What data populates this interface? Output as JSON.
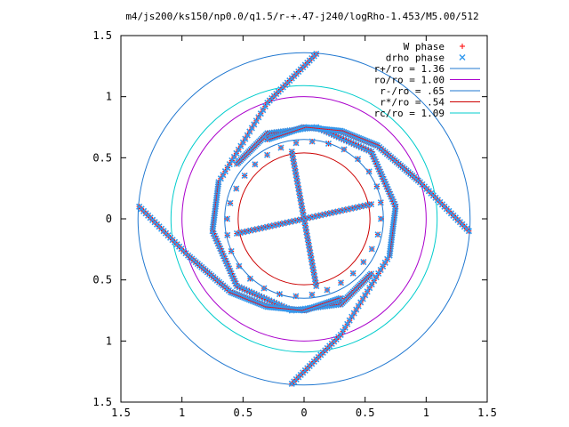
{
  "chart_data": {
    "type": "scatter",
    "title": "m4/js200/ks150/np0.0/q1.5/r-+.47-j240/logRho-1.453/M5.00/512",
    "xlabel": "",
    "ylabel": "",
    "xlim": [
      -1.5,
      1.5
    ],
    "ylim": [
      -1.5,
      1.5
    ],
    "grid": false,
    "legend_position": "top-right",
    "x_ticks": [
      -1.5,
      -1,
      -0.5,
      0,
      0.5,
      1,
      1.5
    ],
    "y_ticks": [
      -1.5,
      -1,
      -0.5,
      0,
      0.5,
      1,
      1.5
    ],
    "x_tick_labels": [
      "1.5",
      "1",
      "0.5",
      "0",
      "0.5",
      "1",
      "1.5"
    ],
    "y_tick_labels": [
      "1.5",
      "1",
      "0.5",
      "0",
      "0.5",
      "1",
      "1.5"
    ],
    "series": [
      {
        "name": "W phase",
        "marker": "plus",
        "color": "#ff0000",
        "arms": [
          {
            "r0": 0.54,
            "theta0": 90,
            "theta1": 400,
            "dr_per_turn": 0.3
          },
          {
            "r0": 0.54,
            "theta0": 270,
            "theta1": 580,
            "dr_per_turn": 0.3
          }
        ],
        "bars": [
          {
            "from": [
              -0.1,
              0.55
            ],
            "to": [
              0.1,
              -0.55
            ]
          },
          {
            "from": [
              -0.55,
              -0.12
            ],
            "to": [
              0.55,
              0.12
            ]
          }
        ],
        "outer_spirals": [
          {
            "points": [
              [
                0.1,
                1.35
              ],
              [
                -0.3,
                0.95
              ],
              [
                -0.7,
                0.3
              ],
              [
                -0.75,
                -0.1
              ],
              [
                -0.55,
                -0.55
              ],
              [
                -0.1,
                -0.75
              ],
              [
                0.3,
                -0.7
              ],
              [
                0.55,
                -0.45
              ]
            ]
          },
          {
            "points": [
              [
                -0.1,
                -1.35
              ],
              [
                0.3,
                -0.95
              ],
              [
                0.7,
                -0.3
              ],
              [
                0.75,
                0.1
              ],
              [
                0.55,
                0.55
              ],
              [
                0.1,
                0.75
              ],
              [
                -0.3,
                0.7
              ],
              [
                -0.55,
                0.45
              ]
            ]
          },
          {
            "points": [
              [
                1.35,
                -0.1
              ],
              [
                0.95,
                0.3
              ],
              [
                0.6,
                0.6
              ],
              [
                0.3,
                0.72
              ],
              [
                0.0,
                0.75
              ],
              [
                -0.3,
                0.65
              ]
            ]
          },
          {
            "points": [
              [
                -1.35,
                0.1
              ],
              [
                -0.95,
                -0.3
              ],
              [
                -0.6,
                -0.6
              ],
              [
                -0.3,
                -0.72
              ],
              [
                0.0,
                -0.75
              ],
              [
                0.3,
                -0.65
              ]
            ]
          }
        ]
      },
      {
        "name": "drho phase",
        "marker": "cross",
        "color": "#3399ee"
      },
      {
        "name": "r+/ro = 1.36",
        "type": "circle",
        "radius": 1.36,
        "color": "#1f77d0"
      },
      {
        "name": "ro/ro = 1.00",
        "type": "circle",
        "radius": 1.0,
        "color": "#aa00cc"
      },
      {
        "name": "r-/ro = .65",
        "type": "circle",
        "radius": 0.65,
        "color": "#1f77d0"
      },
      {
        "name": "r*/ro = .54",
        "type": "circle",
        "radius": 0.54,
        "color": "#cc0000"
      },
      {
        "name": "rc/ro = 1.09",
        "type": "circle",
        "radius": 1.09,
        "color": "#00cccc"
      }
    ]
  }
}
